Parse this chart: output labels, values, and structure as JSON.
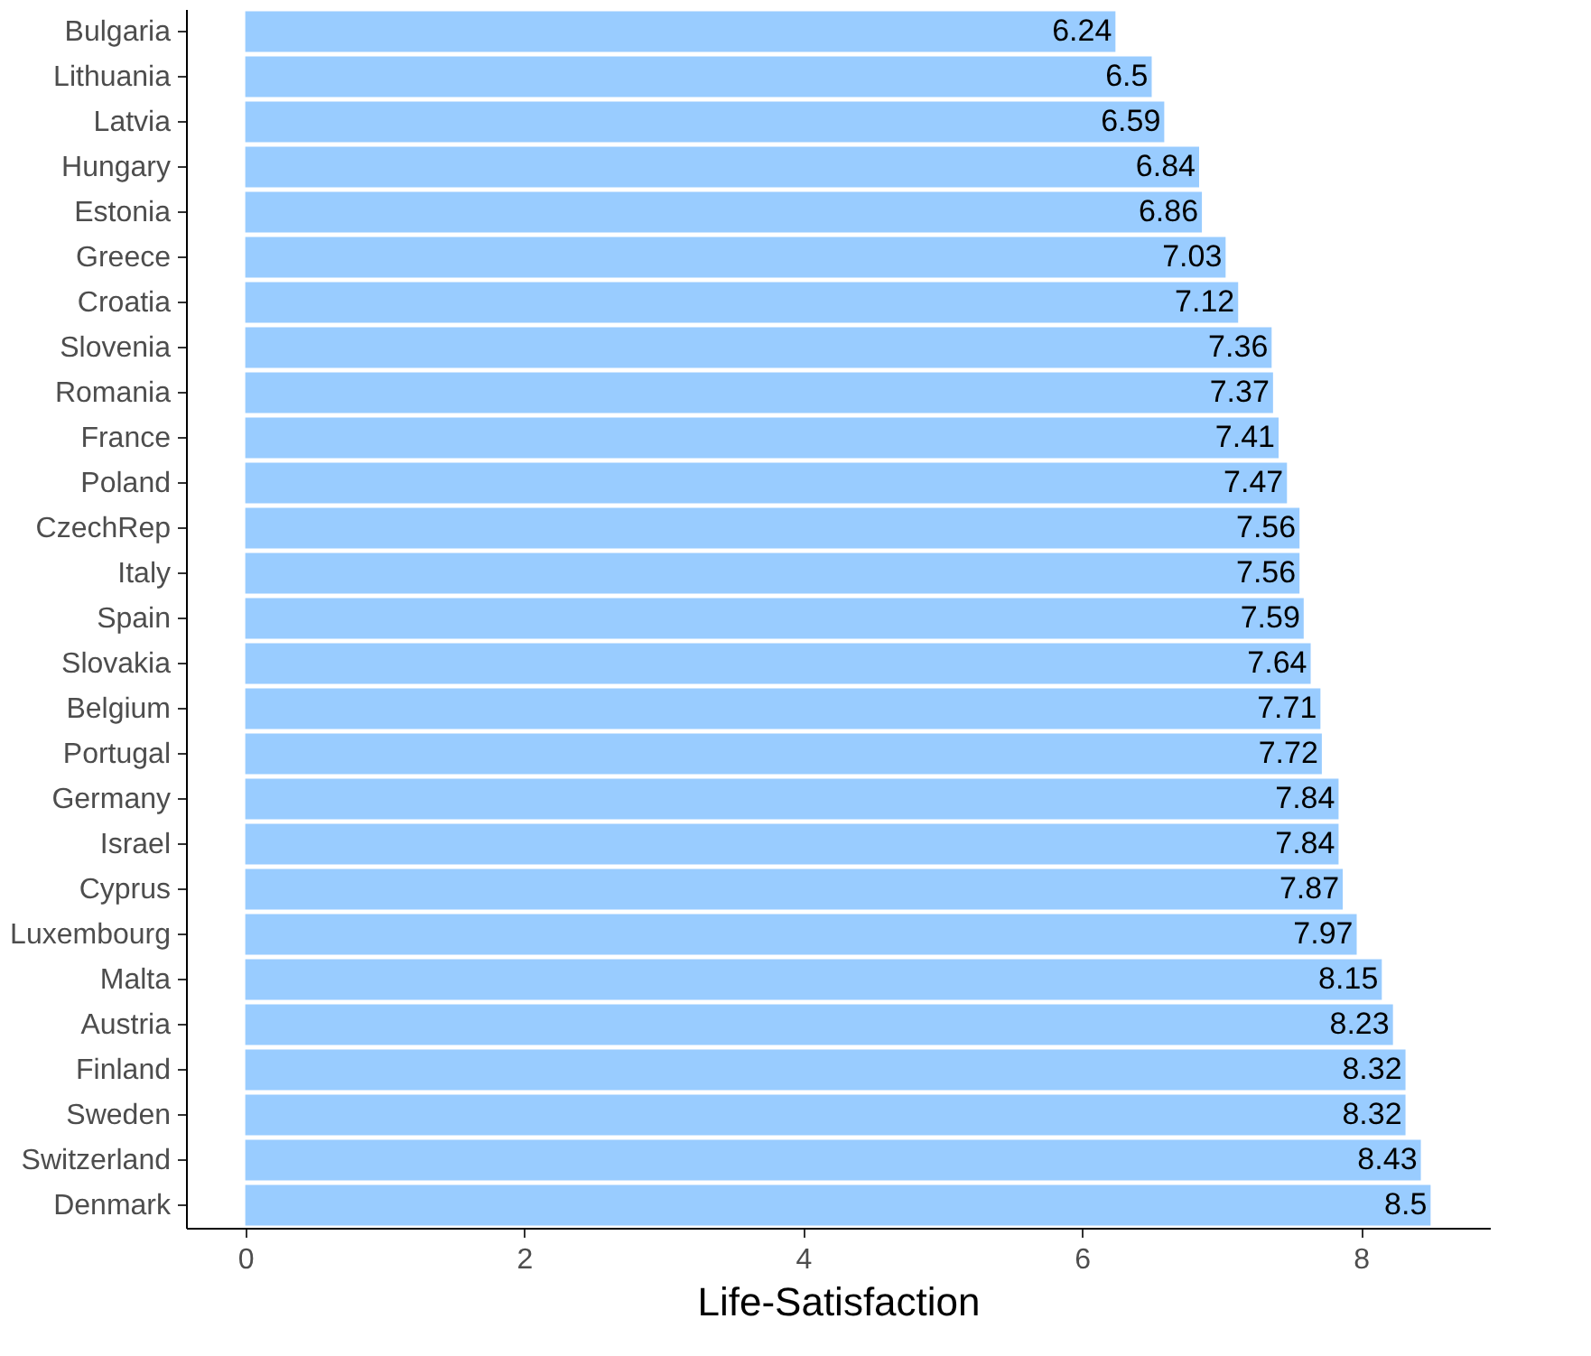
{
  "chart_data": {
    "type": "bar",
    "orientation": "horizontal",
    "xlabel": "Life-Satisfaction",
    "categories": [
      "Bulgaria",
      "Lithuania",
      "Latvia",
      "Hungary",
      "Estonia",
      "Greece",
      "Croatia",
      "Slovenia",
      "Romania",
      "France",
      "Poland",
      "CzechRep",
      "Italy",
      "Spain",
      "Slovakia",
      "Belgium",
      "Portugal",
      "Germany",
      "Israel",
      "Cyprus",
      "Luxembourg",
      "Malta",
      "Austria",
      "Finland",
      "Sweden",
      "Switzerland",
      "Denmark"
    ],
    "values": [
      6.24,
      6.5,
      6.59,
      6.84,
      6.86,
      7.03,
      7.12,
      7.36,
      7.37,
      7.41,
      7.47,
      7.56,
      7.56,
      7.59,
      7.64,
      7.71,
      7.72,
      7.84,
      7.84,
      7.87,
      7.97,
      8.15,
      8.23,
      8.32,
      8.32,
      8.43,
      8.5
    ],
    "color": "#99ccff",
    "xlim": [
      -0.425,
      8.925
    ],
    "xticks": [
      0,
      2,
      4,
      6,
      8
    ],
    "grid": false,
    "data_labels": true
  }
}
